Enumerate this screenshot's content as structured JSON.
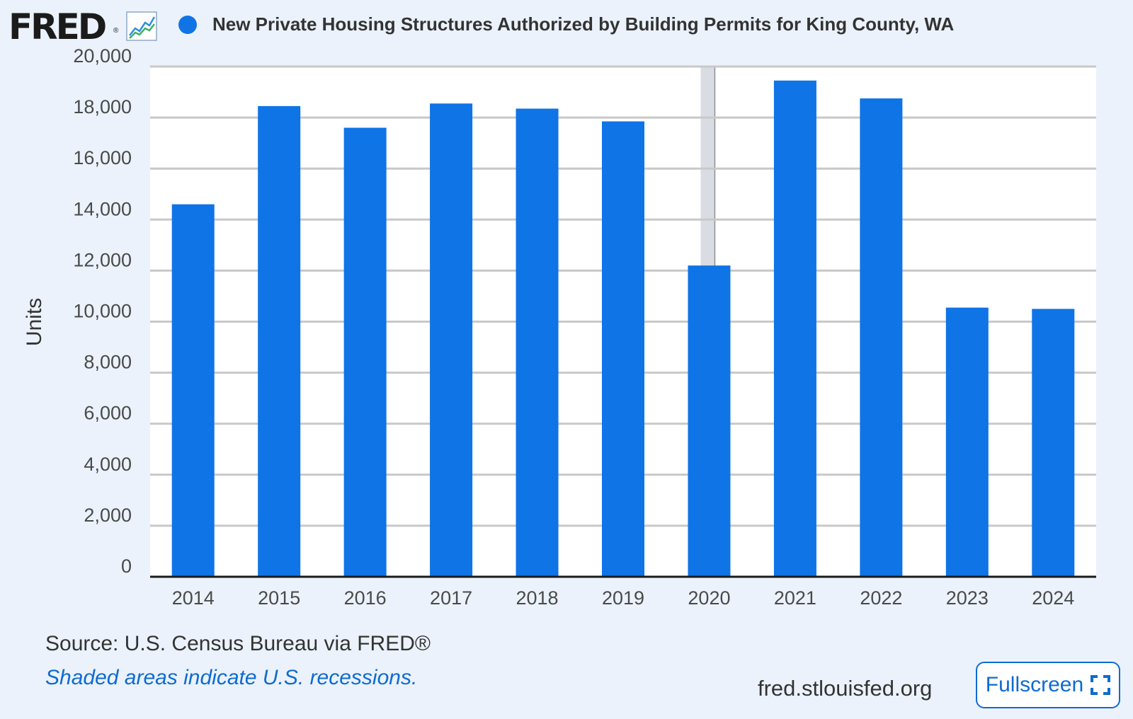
{
  "header": {
    "logo_text": "FRED",
    "logo_reg": "®",
    "logo_icon": "line-chart-icon",
    "title": "New Private Housing Structures Authorized by Building Permits for King County, WA"
  },
  "chart_data": {
    "type": "bar",
    "title": "New Private Housing Structures Authorized by Building Permits for King County, WA",
    "xlabel": "",
    "ylabel": "Units",
    "categories": [
      "2014",
      "2015",
      "2016",
      "2017",
      "2018",
      "2019",
      "2020",
      "2021",
      "2022",
      "2023",
      "2024"
    ],
    "series": [
      {
        "name": "New Private Housing Structures Authorized by Building Permits for King County, WA",
        "values": [
          14600,
          18450,
          17600,
          18550,
          18350,
          17850,
          12200,
          19450,
          18750,
          10550,
          10500
        ]
      }
    ],
    "ylim": [
      0,
      20000
    ],
    "yticks": [
      0,
      2000,
      4000,
      6000,
      8000,
      10000,
      12000,
      14000,
      16000,
      18000,
      20000
    ],
    "ytick_labels": [
      "0",
      "2,000",
      "4,000",
      "6,000",
      "8,000",
      "10,000",
      "12,000",
      "14,000",
      "16,000",
      "18,000",
      "20,000"
    ],
    "recession_shading": [
      {
        "year": "2020"
      }
    ],
    "grid": true,
    "bar_color": "#0f74e6"
  },
  "footer": {
    "source": "Source: U.S. Census Bureau via FRED®",
    "recession_note": "Shaded areas indicate U.S. recessions.",
    "site": "fred.stlouisfed.org",
    "fullscreen_label": "Fullscreen",
    "fullscreen_icon": "expand-icon"
  }
}
